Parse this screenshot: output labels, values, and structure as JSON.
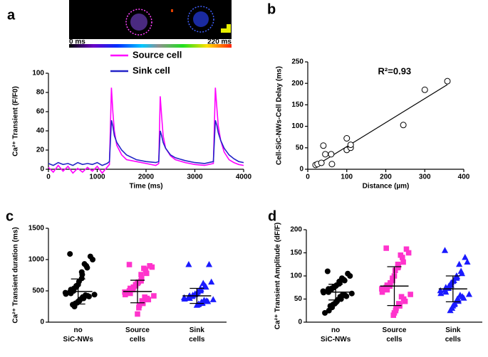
{
  "chart_data": [
    {
      "type": "line",
      "panel": "a",
      "colorbar_labels": [
        "0 ms",
        "220 ms"
      ],
      "xlabel": "Time (ms)",
      "ylabel": "Ca²⁺ Transient (F/F0)",
      "x": [
        0,
        100,
        200,
        300,
        400,
        500,
        600,
        700,
        800,
        900,
        1000,
        1100,
        1200,
        1250,
        1290,
        1320,
        1350,
        1400,
        1500,
        1600,
        1800,
        2000,
        2200,
        2260,
        2290,
        2320,
        2350,
        2400,
        2500,
        2600,
        2800,
        3000,
        3200,
        3380,
        3420,
        3450,
        3480,
        3530,
        3600,
        3700,
        3800,
        3900,
        4000
      ],
      "series": [
        {
          "name": "Source cell",
          "color": "#ff00ff",
          "values": [
            2,
            -3,
            4,
            -2,
            3,
            -4,
            1,
            -3,
            2,
            -2,
            3,
            -4,
            2,
            5,
            85,
            60,
            40,
            25,
            15,
            10,
            8,
            6,
            4,
            6,
            76,
            55,
            35,
            22,
            14,
            10,
            7,
            5,
            4,
            6,
            85,
            65,
            45,
            30,
            18,
            10,
            7,
            5,
            4
          ]
        },
        {
          "name": "Sink cell",
          "color": "#2323c8",
          "values": [
            6,
            4,
            7,
            5,
            6,
            4,
            7,
            5,
            6,
            5,
            7,
            4,
            6,
            8,
            51,
            45,
            35,
            28,
            20,
            15,
            10,
            8,
            7,
            8,
            40,
            35,
            28,
            22,
            15,
            12,
            9,
            7,
            6,
            8,
            51,
            46,
            38,
            30,
            22,
            15,
            11,
            8,
            7
          ]
        }
      ],
      "xlim": [
        0,
        4000
      ],
      "xticks": [
        0,
        1000,
        2000,
        3000,
        4000
      ],
      "ylim": [
        0,
        100
      ],
      "yticks": [
        0,
        20,
        40,
        60,
        80,
        100
      ]
    },
    {
      "type": "scatter",
      "panel": "b",
      "xlabel": "Distance (µm)",
      "ylabel": "Cell-SiC-NWs-Cell Delay (ms)",
      "annotation": "R²=0.93",
      "x": [
        20,
        25,
        35,
        40,
        45,
        60,
        62,
        100,
        100,
        110,
        110,
        245,
        300,
        358
      ],
      "y": [
        10,
        12,
        15,
        55,
        35,
        35,
        12,
        72,
        45,
        50,
        57,
        103,
        185,
        205
      ],
      "fit_line": {
        "x": [
          20,
          358
        ],
        "y": [
          8,
          197
        ]
      },
      "xlim": [
        0,
        400
      ],
      "xticks": [
        0,
        100,
        200,
        300,
        400
      ],
      "ylim": [
        0,
        250
      ],
      "yticks": [
        0,
        50,
        100,
        150,
        200,
        250
      ]
    },
    {
      "type": "dotplot",
      "panel": "c",
      "ylabel": "Ca²⁺ Transient duration (ms)",
      "categories": [
        "no SiC-NWs",
        "Source cells",
        "Sink cells"
      ],
      "groups": [
        {
          "color": "#000000",
          "marker": "circle",
          "values": [
            1090,
            1050,
            1000,
            930,
            900,
            870,
            800,
            760,
            700,
            650,
            600,
            580,
            560,
            540,
            520,
            500,
            480,
            470,
            460,
            450,
            440,
            430,
            420,
            410,
            400,
            390,
            380,
            360,
            340,
            330,
            310,
            300,
            280,
            250
          ]
        },
        {
          "color": "#ff33cc",
          "marker": "square",
          "values": [
            920,
            900,
            880,
            860,
            840,
            780,
            760,
            700,
            660,
            640,
            620,
            600,
            580,
            560,
            540,
            520,
            500,
            480,
            460,
            440,
            420,
            400,
            380,
            360,
            340,
            320,
            300,
            270,
            230,
            130
          ]
        },
        {
          "color": "#1a1aff",
          "marker": "triangle",
          "values": [
            920,
            920,
            640,
            620,
            580,
            560,
            540,
            520,
            500,
            480,
            460,
            450,
            440,
            430,
            420,
            410,
            400,
            390,
            380,
            370,
            360,
            350,
            340,
            330,
            320,
            310,
            300,
            290,
            280,
            270
          ]
        }
      ],
      "mean": [
        490,
        490,
        420
      ],
      "sd": [
        200,
        180,
        120
      ],
      "ylim": [
        0,
        1500
      ],
      "yticks": [
        0,
        500,
        1000,
        1500
      ]
    },
    {
      "type": "dotplot",
      "panel": "d",
      "ylabel": "Ca²⁺ Transient Amplitude (dF/F)",
      "categories": [
        "no SiC-NWs",
        "Source cells",
        "Sink cells"
      ],
      "groups": [
        {
          "color": "#000000",
          "marker": "circle",
          "values": [
            110,
            105,
            100,
            95,
            92,
            90,
            88,
            85,
            83,
            80,
            78,
            76,
            75,
            73,
            72,
            70,
            68,
            67,
            65,
            64,
            62,
            60,
            58,
            56,
            55,
            53,
            50,
            48,
            45,
            42,
            40,
            38,
            35,
            32,
            25,
            20
          ]
        },
        {
          "color": "#ff33cc",
          "marker": "square",
          "values": [
            160,
            158,
            150,
            145,
            140,
            130,
            125,
            120,
            118,
            112,
            100,
            95,
            90,
            85,
            80,
            78,
            75,
            72,
            70,
            65,
            60,
            55,
            50,
            45,
            40,
            38,
            35,
            30,
            25,
            20,
            15
          ]
        },
        {
          "color": "#1a1aff",
          "marker": "triangle",
          "values": [
            155,
            140,
            130,
            125,
            110,
            105,
            100,
            98,
            95,
            90,
            88,
            85,
            80,
            78,
            75,
            73,
            70,
            68,
            65,
            62,
            60,
            58,
            55,
            52,
            50,
            48,
            45,
            40,
            38,
            35,
            30,
            25
          ]
        }
      ],
      "mean": [
        65,
        78,
        72
      ],
      "sd": [
        17,
        42,
        28
      ],
      "ylim": [
        0,
        200
      ],
      "yticks": [
        0,
        50,
        100,
        150,
        200
      ]
    }
  ]
}
